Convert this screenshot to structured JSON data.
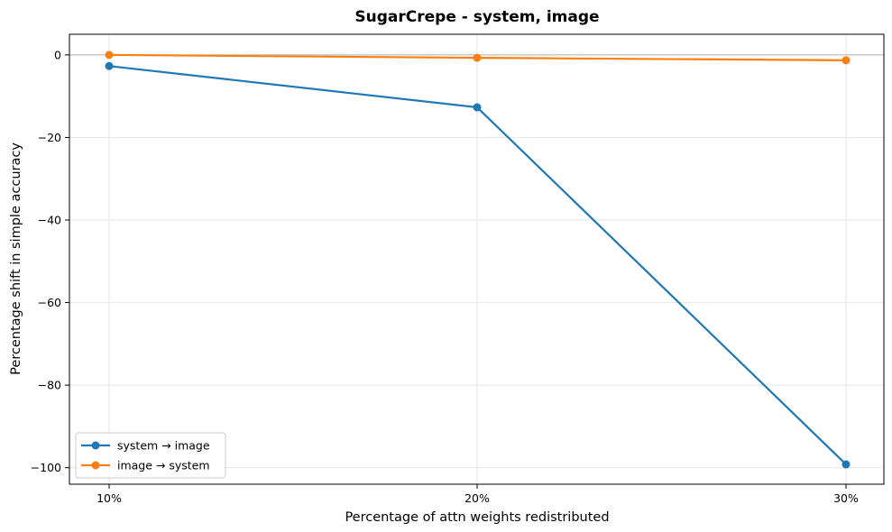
{
  "chart_data": {
    "type": "line",
    "title": "SugarCrepe - system, image",
    "xlabel": "Percentage of attn weights redistributed",
    "ylabel": "Percentage shift in simple accuracy",
    "categories": [
      "10%",
      "20%",
      "30%"
    ],
    "ylim": [
      -104,
      5
    ],
    "yticks": [
      0,
      -20,
      -40,
      -60,
      -80,
      -100
    ],
    "ytick_labels": [
      "0",
      "−20",
      "−40",
      "−60",
      "−80",
      "−100"
    ],
    "grid": true,
    "reference_line": 0,
    "legend_position": "lower-left",
    "series": [
      {
        "name": "system → image",
        "color": "#1f77b4",
        "values": [
          -2.7,
          -12.7,
          -99.2
        ]
      },
      {
        "name": "image → system",
        "color": "#ff7f0e",
        "values": [
          0.0,
          -0.7,
          -1.3
        ]
      }
    ]
  }
}
